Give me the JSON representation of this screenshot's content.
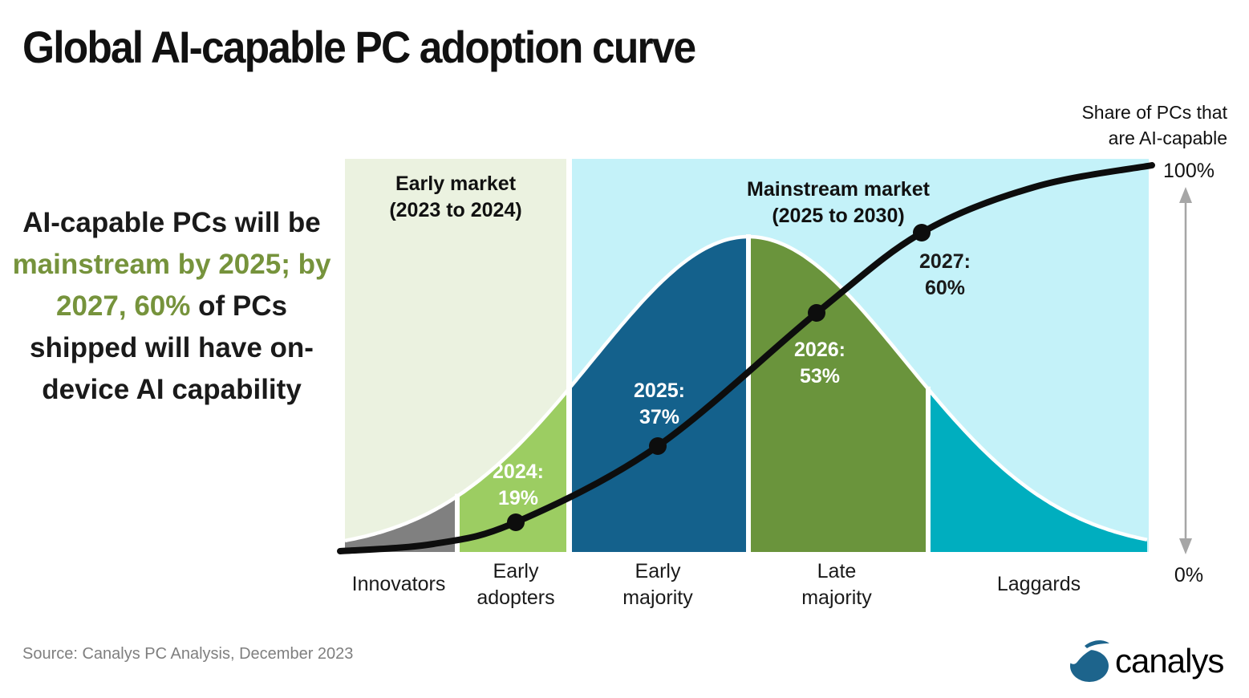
{
  "title": "Global AI-capable PC adoption curve",
  "insight": {
    "base_color": "#1a1a1a",
    "highlight_color": "#76933c",
    "parts": [
      {
        "text": "AI-capable PCs will be ",
        "highlight": false
      },
      {
        "text": "mainstream by 2025; by 2027, 60%",
        "highlight": true
      },
      {
        "text": " of PCs shipped will have on-device AI capability",
        "highlight": false
      }
    ]
  },
  "source": "Source: Canalys PC Analysis, December 2023",
  "logo": {
    "text": "canalys",
    "color": "#1d648c"
  },
  "chart_data": {
    "type": "area",
    "title": "Global AI-capable PC adoption curve",
    "description": "Rogers adoption bell curve split into adopter segments, with a cumulative S-curve showing the share of PCs that are AI-capable",
    "x": [
      2024,
      2025,
      2026,
      2027
    ],
    "series": [
      {
        "name": "Share of PCs that are AI-capable (cumulative)",
        "type": "line",
        "values_pct": [
          19,
          37,
          53,
          60
        ]
      }
    ],
    "ylim": [
      0,
      100
    ],
    "y_axis": {
      "label_line1": "Share of PCs that",
      "label_line2": "are AI-capable",
      "max_label": "100%",
      "min_label": "0%"
    },
    "regions": [
      {
        "label": "Early market",
        "sublabel": "(2023 to 2024)",
        "color": "#ebf2e0"
      },
      {
        "label": "Mainstream market",
        "sublabel": "(2025 to 2030)",
        "color": "#c4f2f9"
      }
    ],
    "segments": [
      {
        "line1": "Innovators",
        "line2": "",
        "color": "#808080"
      },
      {
        "line1": "Early",
        "line2": "adopters",
        "color": "#9ccd62"
      },
      {
        "line1": "Early",
        "line2": "majority",
        "color": "#14618c"
      },
      {
        "line1": "Late",
        "line2": "majority",
        "color": "#6a943c"
      },
      {
        "line1": "Laggards",
        "line2": "",
        "color": "#00aebf"
      }
    ],
    "annotations": [
      {
        "year_label": "2024:",
        "value_label": "19%",
        "text_color": "#ffffff"
      },
      {
        "year_label": "2025:",
        "value_label": "37%",
        "text_color": "#ffffff"
      },
      {
        "year_label": "2026:",
        "value_label": "53%",
        "text_color": "#ffffff"
      },
      {
        "year_label": "2027:",
        "value_label": "60%",
        "text_color": "#1a1a1a"
      }
    ],
    "curve_color": "#0d0d0d",
    "arrow_color": "#a6a6a6"
  }
}
